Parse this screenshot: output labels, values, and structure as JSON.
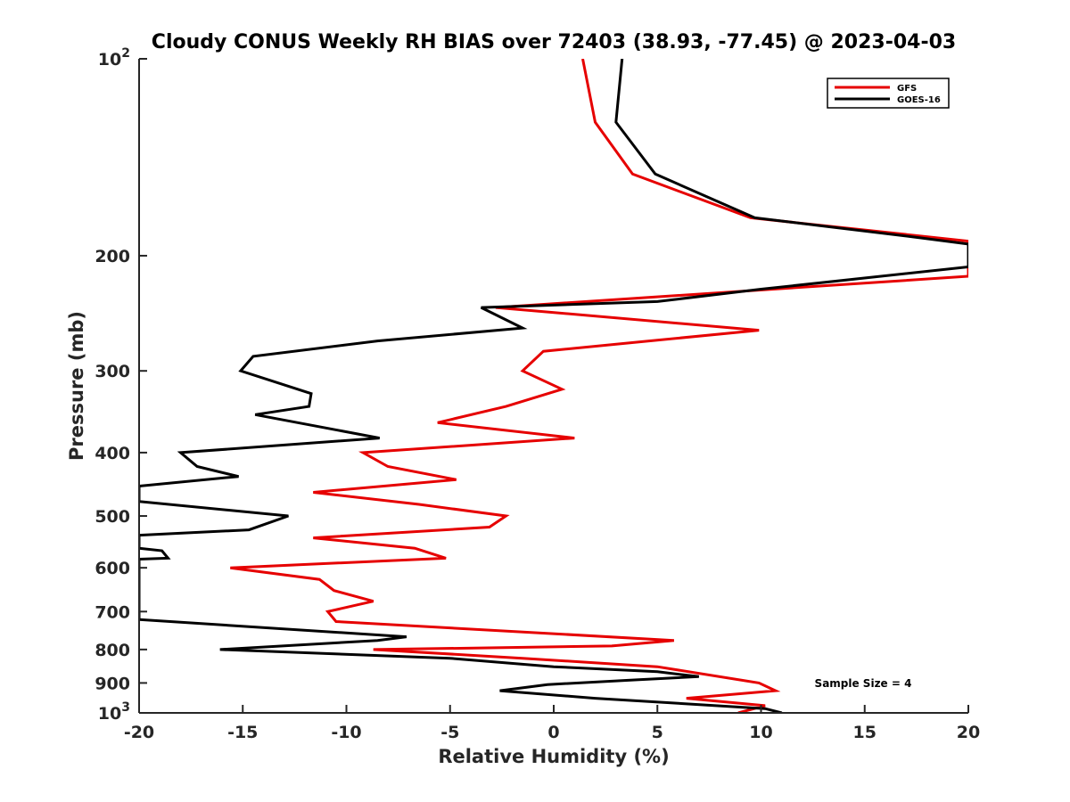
{
  "chart_data": {
    "type": "line",
    "title": "Cloudy CONUS Weekly RH BIAS over 72403 (38.93, -77.45) @ 2023-04-03",
    "xlabel": "Relative Humidity (%)",
    "ylabel": "Pressure (mb)",
    "xlim": [
      -20,
      20
    ],
    "ylim": [
      100,
      1000
    ],
    "y_scale": "log",
    "y_reversed": true,
    "x_ticks": [
      -20,
      -15,
      -10,
      -5,
      0,
      5,
      10,
      15,
      20
    ],
    "x_tick_labels": [
      "-20",
      "-15",
      "-10",
      "-5",
      "0",
      "5",
      "10",
      "15",
      "20"
    ],
    "y_ticks": [
      100,
      200,
      300,
      400,
      500,
      600,
      700,
      800,
      900,
      1000
    ],
    "y_tick_labels": [
      {
        "base": "10",
        "exp": "2"
      },
      {
        "base": "200",
        "exp": ""
      },
      {
        "base": "300",
        "exp": ""
      },
      {
        "base": "400",
        "exp": ""
      },
      {
        "base": "500",
        "exp": ""
      },
      {
        "base": "600",
        "exp": ""
      },
      {
        "base": "700",
        "exp": ""
      },
      {
        "base": "800",
        "exp": ""
      },
      {
        "base": "900",
        "exp": ""
      },
      {
        "base": "10",
        "exp": "3"
      }
    ],
    "grid": false,
    "legend_position": "top-right",
    "annotation": "Sample Size = 4",
    "series": [
      {
        "name": "GFS",
        "color": "#e60000",
        "points": [
          [
            1.4,
            100
          ],
          [
            2.0,
            125
          ],
          [
            3.8,
            150
          ],
          [
            9.5,
            175
          ],
          [
            20.0,
            190
          ],
          [
            20.0,
            215
          ],
          [
            -2.8,
            240
          ],
          [
            9.9,
            260
          ],
          [
            -0.5,
            280
          ],
          [
            -1.5,
            300
          ],
          [
            0.4,
            320
          ],
          [
            -2.3,
            340
          ],
          [
            -5.6,
            360
          ],
          [
            1.0,
            380
          ],
          [
            -9.2,
            400
          ],
          [
            -8.0,
            420
          ],
          [
            -4.7,
            440
          ],
          [
            -11.6,
            460
          ],
          [
            -6.5,
            480
          ],
          [
            -2.3,
            500
          ],
          [
            -3.1,
            520
          ],
          [
            -11.6,
            540
          ],
          [
            -6.7,
            560
          ],
          [
            -5.2,
            580
          ],
          [
            -15.6,
            600
          ],
          [
            -11.3,
            625
          ],
          [
            -10.6,
            650
          ],
          [
            -8.7,
            675
          ],
          [
            -10.9,
            700
          ],
          [
            -10.5,
            725
          ],
          [
            5.8,
            775
          ],
          [
            2.8,
            790
          ],
          [
            -8.7,
            800
          ],
          [
            -1.5,
            825
          ],
          [
            5.0,
            850
          ],
          [
            9.9,
            900
          ],
          [
            10.7,
            925
          ],
          [
            6.4,
            950
          ],
          [
            10.2,
            975
          ],
          [
            8.9,
            1000
          ]
        ]
      },
      {
        "name": "GOES-16",
        "color": "#000000",
        "points": [
          [
            3.3,
            100
          ],
          [
            3.0,
            125
          ],
          [
            4.9,
            150
          ],
          [
            9.7,
            175
          ],
          [
            17.8,
            188
          ],
          [
            20.0,
            192
          ],
          [
            20.0,
            208
          ],
          [
            10.0,
            225
          ],
          [
            5.0,
            235
          ],
          [
            -3.5,
            240
          ],
          [
            -1.5,
            258
          ],
          [
            -8.5,
            270
          ],
          [
            -14.5,
            285
          ],
          [
            -15.1,
            300
          ],
          [
            -11.7,
            325
          ],
          [
            -11.8,
            340
          ],
          [
            -14.4,
            350
          ],
          [
            -8.4,
            380
          ],
          [
            -18.0,
            400
          ],
          [
            -17.2,
            420
          ],
          [
            -15.2,
            435
          ],
          [
            -20.0,
            450
          ],
          [
            -20.0,
            475
          ],
          [
            -12.8,
            500
          ],
          [
            -14.7,
            525
          ],
          [
            -20.0,
            535
          ],
          [
            -20.0,
            560
          ],
          [
            -18.9,
            565
          ],
          [
            -18.6,
            580
          ],
          [
            -20.0,
            582
          ],
          [
            -20.0,
            720
          ],
          [
            -7.1,
            765
          ],
          [
            -8.5,
            775
          ],
          [
            -16.1,
            800
          ],
          [
            -5.0,
            825
          ],
          [
            0.0,
            850
          ],
          [
            5.0,
            865
          ],
          [
            7.0,
            880
          ],
          [
            4.0,
            890
          ],
          [
            -0.3,
            905
          ],
          [
            -2.6,
            925
          ],
          [
            2.0,
            950
          ],
          [
            10.2,
            985
          ],
          [
            11.0,
            1000
          ]
        ]
      }
    ]
  }
}
